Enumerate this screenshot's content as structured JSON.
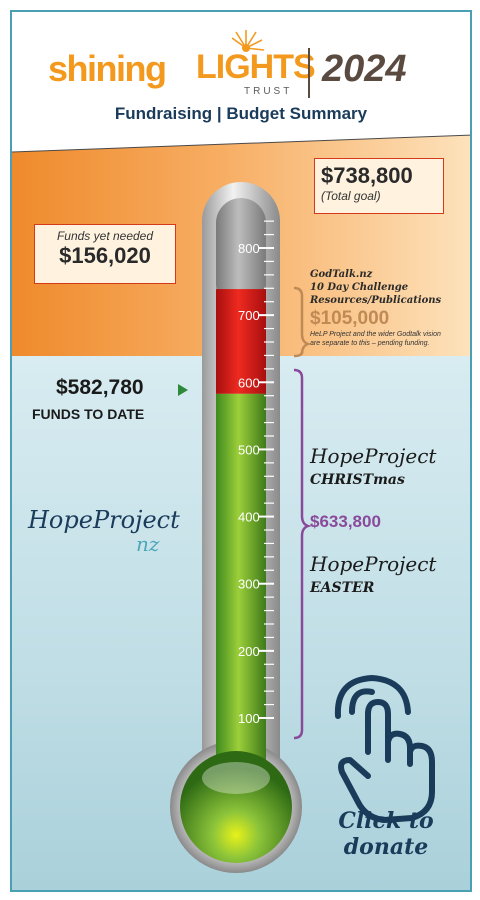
{
  "header": {
    "logo_shining": "shining",
    "logo_lights": "LIGHTS",
    "logo_trust": "TRUST",
    "year": "2024",
    "subtitle": "Fundraising | Budget Summary"
  },
  "total": {
    "amount": "$738,800",
    "label": "(Total goal)"
  },
  "needed": {
    "label": "Funds yet needed",
    "amount": "$156,020"
  },
  "godtalk": {
    "lines": [
      "GodTalk.nz",
      "10 Day Challenge",
      "Resources/Publications"
    ],
    "amount": "$105,000",
    "note": [
      "HeLP Project and the wider Godtalk vision",
      "are separate to this – pending funding."
    ]
  },
  "funds": {
    "amount": "$582,780",
    "label": "FUNDS TO DATE"
  },
  "hope_logo": {
    "text": "HopeProject",
    "nz": "nz"
  },
  "hope": {
    "christmas_title": "HopeProject",
    "christmas_sub": "CHRISTmas",
    "amount": "$633,800",
    "easter_title": "HopeProject",
    "easter_sub": "EASTER"
  },
  "donate": {
    "line1": "Click to",
    "line2": "donate"
  },
  "thermometer": {
    "scale_labels": [
      "800",
      "700",
      "600",
      "500",
      "400",
      "300",
      "200",
      "100"
    ],
    "funded_level": 582.78,
    "goal_level": 738.8,
    "scale_max": 850
  },
  "colors": {
    "orange": "#f39a1e",
    "green": "#7ab83a",
    "red": "#e21b1b",
    "purple": "#8a4a9a",
    "navy": "#1a3b5a"
  }
}
